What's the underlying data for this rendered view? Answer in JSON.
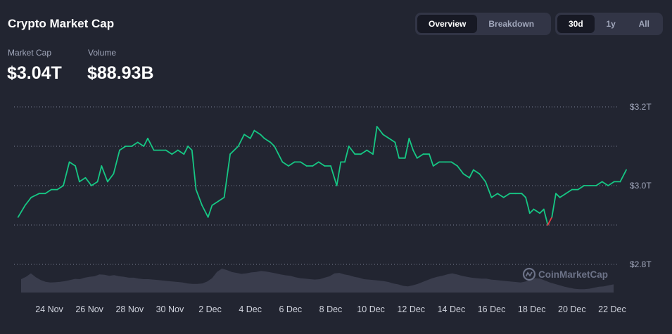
{
  "header": {
    "title": "Crypto Market Cap"
  },
  "view_tabs": [
    {
      "label": "Overview",
      "active": true
    },
    {
      "label": "Breakdown",
      "active": false
    }
  ],
  "range_tabs": [
    {
      "label": "30d",
      "active": true
    },
    {
      "label": "1y",
      "active": false
    },
    {
      "label": "All",
      "active": false
    }
  ],
  "stats": {
    "market_cap": {
      "label": "Market Cap",
      "value": "$3.04T"
    },
    "volume": {
      "label": "Volume",
      "value": "$88.93B"
    }
  },
  "watermark": "CoinMarketCap",
  "colors": {
    "background": "#222531",
    "line_up": "#16c784",
    "line_down": "#ea3943",
    "volume_fill": "#3a3d4d",
    "grid": "#a1a7bb"
  },
  "chart_data": {
    "type": "line",
    "unit": "T",
    "y_ticks": [
      {
        "label": "$3.2T",
        "value": 3.2
      },
      {
        "label": "$3.0T",
        "value": 3.0
      },
      {
        "label": "$2.8T",
        "value": 2.8
      }
    ],
    "ylim": [
      2.8,
      3.2
    ],
    "x_ticks": [
      "24 Nov",
      "26 Nov",
      "28 Nov",
      "30 Nov",
      "2 Dec",
      "4 Dec",
      "6 Dec",
      "8 Dec",
      "10 Dec",
      "12 Dec",
      "14 Dec",
      "16 Dec",
      "18 Dec",
      "20 Dec",
      "22 Dec"
    ],
    "x_tick_positions": [
      0,
      2,
      4,
      6,
      8,
      10,
      12,
      14,
      16,
      18,
      20,
      22,
      24,
      26,
      28
    ],
    "series": [
      {
        "values": [
          [
            -1.55,
            2.92
          ],
          [
            -1.2,
            2.95
          ],
          [
            -0.9,
            2.97
          ],
          [
            -0.5,
            2.98
          ],
          [
            -0.2,
            2.98
          ],
          [
            0.1,
            2.99
          ],
          [
            0.4,
            2.99
          ],
          [
            0.7,
            3.0
          ],
          [
            1.0,
            3.06
          ],
          [
            1.3,
            3.05
          ],
          [
            1.5,
            3.01
          ],
          [
            1.8,
            3.02
          ],
          [
            2.1,
            3.0
          ],
          [
            2.4,
            3.01
          ],
          [
            2.6,
            3.05
          ],
          [
            2.9,
            3.01
          ],
          [
            3.2,
            3.03
          ],
          [
            3.5,
            3.09
          ],
          [
            3.8,
            3.1
          ],
          [
            4.1,
            3.1
          ],
          [
            4.4,
            3.11
          ],
          [
            4.7,
            3.1
          ],
          [
            4.9,
            3.12
          ],
          [
            5.2,
            3.09
          ],
          [
            5.5,
            3.09
          ],
          [
            5.8,
            3.09
          ],
          [
            6.1,
            3.08
          ],
          [
            6.4,
            3.09
          ],
          [
            6.7,
            3.08
          ],
          [
            6.9,
            3.1
          ],
          [
            7.1,
            3.09
          ],
          [
            7.3,
            2.99
          ],
          [
            7.6,
            2.95
          ],
          [
            7.9,
            2.92
          ],
          [
            8.1,
            2.95
          ],
          [
            8.4,
            2.96
          ],
          [
            8.7,
            2.97
          ],
          [
            9.0,
            3.08
          ],
          [
            9.4,
            3.1
          ],
          [
            9.7,
            3.13
          ],
          [
            10.0,
            3.12
          ],
          [
            10.2,
            3.14
          ],
          [
            10.5,
            3.13
          ],
          [
            10.7,
            3.12
          ],
          [
            11.0,
            3.11
          ],
          [
            11.2,
            3.1
          ],
          [
            11.4,
            3.08
          ],
          [
            11.6,
            3.06
          ],
          [
            11.9,
            3.05
          ],
          [
            12.2,
            3.06
          ],
          [
            12.5,
            3.06
          ],
          [
            12.8,
            3.05
          ],
          [
            13.1,
            3.05
          ],
          [
            13.4,
            3.06
          ],
          [
            13.7,
            3.05
          ],
          [
            14.0,
            3.05
          ],
          [
            14.3,
            3.0
          ],
          [
            14.5,
            3.06
          ],
          [
            14.7,
            3.06
          ],
          [
            14.9,
            3.1
          ],
          [
            15.2,
            3.08
          ],
          [
            15.5,
            3.08
          ],
          [
            15.8,
            3.09
          ],
          [
            16.1,
            3.08
          ],
          [
            16.3,
            3.15
          ],
          [
            16.6,
            3.13
          ],
          [
            16.9,
            3.12
          ],
          [
            17.2,
            3.11
          ],
          [
            17.4,
            3.07
          ],
          [
            17.7,
            3.07
          ],
          [
            17.9,
            3.12
          ],
          [
            18.1,
            3.09
          ],
          [
            18.3,
            3.07
          ],
          [
            18.6,
            3.08
          ],
          [
            18.9,
            3.08
          ],
          [
            19.1,
            3.05
          ],
          [
            19.4,
            3.06
          ],
          [
            19.7,
            3.06
          ],
          [
            20.0,
            3.06
          ],
          [
            20.3,
            3.05
          ],
          [
            20.6,
            3.03
          ],
          [
            20.9,
            3.02
          ],
          [
            21.1,
            3.04
          ],
          [
            21.4,
            3.03
          ],
          [
            21.7,
            3.01
          ],
          [
            22.0,
            2.97
          ],
          [
            22.3,
            2.98
          ],
          [
            22.6,
            2.97
          ],
          [
            22.9,
            2.98
          ],
          [
            23.2,
            2.98
          ],
          [
            23.5,
            2.98
          ],
          [
            23.7,
            2.97
          ],
          [
            23.9,
            2.93
          ],
          [
            24.1,
            2.94
          ],
          [
            24.4,
            2.93
          ],
          [
            24.6,
            2.94
          ],
          [
            24.8,
            2.9
          ],
          [
            25.0,
            2.92
          ],
          [
            25.2,
            2.98
          ],
          [
            25.4,
            2.97
          ],
          [
            25.7,
            2.98
          ],
          [
            26.0,
            2.99
          ],
          [
            26.3,
            2.99
          ],
          [
            26.6,
            3.0
          ],
          [
            26.9,
            3.0
          ],
          [
            27.2,
            3.0
          ],
          [
            27.5,
            3.01
          ],
          [
            27.8,
            3.0
          ],
          [
            28.1,
            3.01
          ],
          [
            28.4,
            3.01
          ],
          [
            28.7,
            3.04
          ]
        ]
      }
    ],
    "volume_values": [
      0.56,
      0.66,
      0.8,
      0.64,
      0.52,
      0.45,
      0.42,
      0.43,
      0.45,
      0.48,
      0.52,
      0.57,
      0.56,
      0.62,
      0.66,
      0.68,
      0.76,
      0.74,
      0.7,
      0.73,
      0.68,
      0.66,
      0.62,
      0.62,
      0.58,
      0.56,
      0.56,
      0.54,
      0.52,
      0.5,
      0.48,
      0.46,
      0.44,
      0.42,
      0.38,
      0.36,
      0.36,
      0.38,
      0.46,
      0.6,
      0.86,
      1.0,
      0.94,
      0.86,
      0.82,
      0.78,
      0.8,
      0.84,
      0.86,
      0.9,
      0.88,
      0.84,
      0.8,
      0.76,
      0.72,
      0.7,
      0.64,
      0.6,
      0.58,
      0.56,
      0.54,
      0.56,
      0.62,
      0.68,
      0.8,
      0.82,
      0.76,
      0.72,
      0.66,
      0.62,
      0.56,
      0.54,
      0.52,
      0.5,
      0.48,
      0.44,
      0.38,
      0.34,
      0.28,
      0.26,
      0.3,
      0.36,
      0.44,
      0.52,
      0.6,
      0.66,
      0.7,
      0.76,
      0.8,
      0.76,
      0.7,
      0.66,
      0.62,
      0.6,
      0.58,
      0.58,
      0.54,
      0.52,
      0.5,
      0.48,
      0.46,
      0.44,
      0.42,
      0.46,
      0.52,
      0.6,
      0.58,
      0.5,
      0.42,
      0.36,
      0.3,
      0.24,
      0.2,
      0.16,
      0.14,
      0.14,
      0.16,
      0.2,
      0.24,
      0.26,
      0.3,
      0.34
    ]
  }
}
